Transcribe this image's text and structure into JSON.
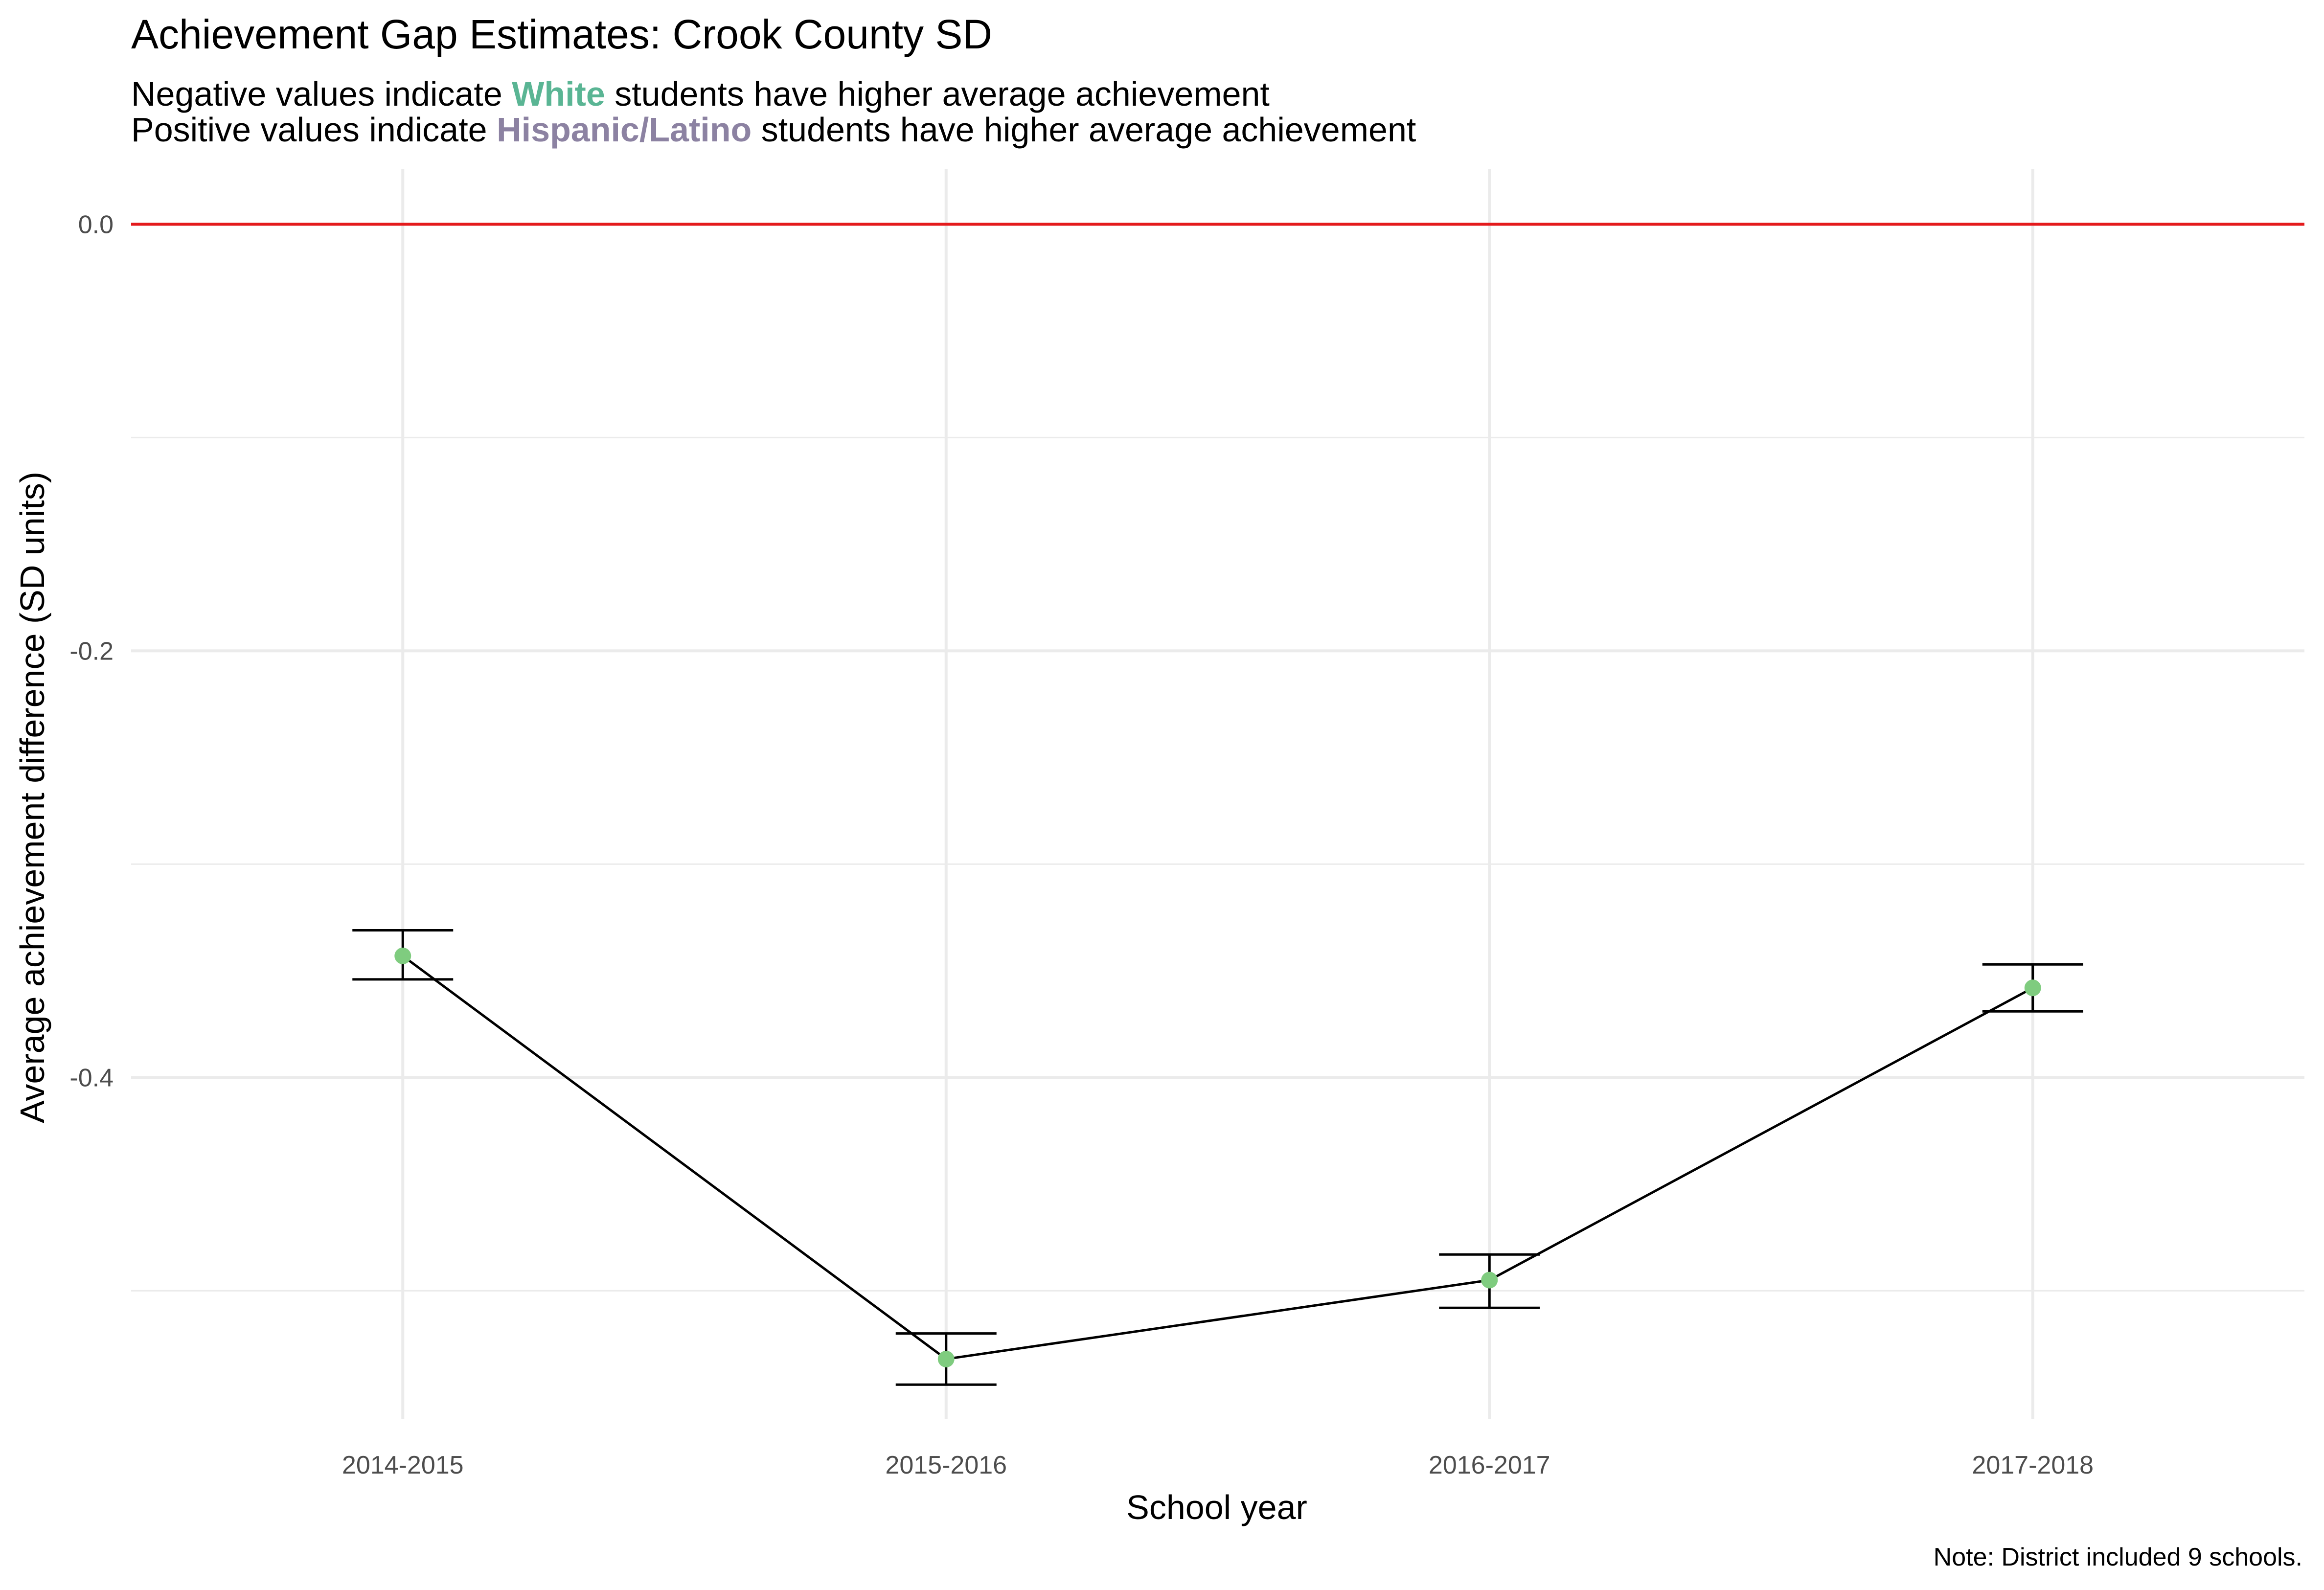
{
  "title": "Achievement Gap Estimates: Crook County SD",
  "subtitle": {
    "line1": {
      "before": "Negative values indicate ",
      "highlight": "White",
      "after": " students have higher average achievement"
    },
    "line2": {
      "before": "Positive values indicate ",
      "highlight": "Hispanic/Latino",
      "after": " students have higher average achievement"
    }
  },
  "colors": {
    "white_group": "#5ab594",
    "hispanic_group": "#8c82a2",
    "point": "#7fcc7f",
    "reference_line": "#e41a1c",
    "grid": "#ebebeb"
  },
  "caption": "Note: District included 9 schools.",
  "chart_data": {
    "type": "line",
    "xlabel": "School year",
    "ylabel": "Average achievement difference (SD units)",
    "categories": [
      "2014-2015",
      "2015-2016",
      "2016-2017",
      "2017-2018"
    ],
    "values": [
      -0.343,
      -0.532,
      -0.495,
      -0.358
    ],
    "error_lower": [
      -0.354,
      -0.544,
      -0.508,
      -0.369
    ],
    "error_upper": [
      -0.331,
      -0.52,
      -0.483,
      -0.347
    ],
    "ylim": [
      -0.56,
      0.026
    ],
    "yticks": [
      0.0,
      -0.2,
      -0.4
    ],
    "ytick_labels": [
      "0.0",
      "-0.2",
      "-0.4"
    ],
    "reference_line": 0.0,
    "grid": true,
    "legend": "none"
  }
}
